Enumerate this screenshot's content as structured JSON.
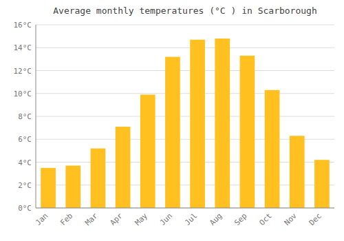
{
  "chart_data": {
    "type": "bar",
    "title": "Average monthly temperatures (°C ) in Scarborough",
    "categories": [
      "Jan",
      "Feb",
      "Mar",
      "Apr",
      "May",
      "Jun",
      "Jul",
      "Aug",
      "Sep",
      "Oct",
      "Nov",
      "Dec"
    ],
    "values": [
      3.5,
      3.7,
      5.2,
      7.1,
      9.9,
      13.2,
      14.7,
      14.8,
      13.3,
      10.3,
      6.3,
      4.2
    ],
    "color": "#FFC020",
    "ylim": [
      0,
      16
    ],
    "yticks": [
      {
        "value": 0,
        "label": "0°C"
      },
      {
        "value": 2,
        "label": "2°C"
      },
      {
        "value": 4,
        "label": "4°C"
      },
      {
        "value": 6,
        "label": "6°C"
      },
      {
        "value": 8,
        "label": "8°C"
      },
      {
        "value": 10,
        "label": "10°C"
      },
      {
        "value": 12,
        "label": "12°C"
      },
      {
        "value": 14,
        "label": "14°C"
      },
      {
        "value": 16,
        "label": "16°C"
      }
    ],
    "grid": true
  }
}
